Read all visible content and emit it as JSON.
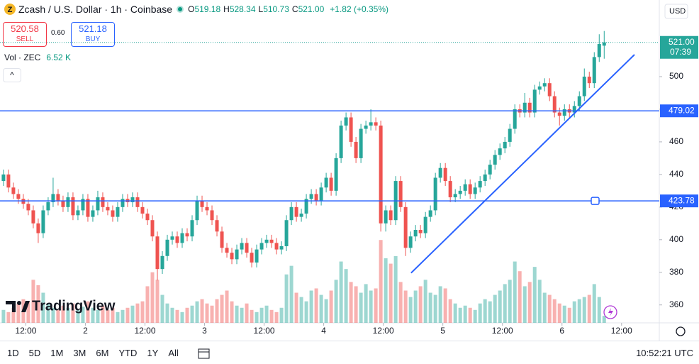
{
  "chart_data": {
    "type": "candlestick",
    "title": "Zcash / U.S. Dollar · 1h · Coinbase",
    "ohlc_header": [
      {
        "label": "O",
        "value": "519.18"
      },
      {
        "label": "H",
        "value": "528.34"
      },
      {
        "label": "L",
        "value": "510.73"
      },
      {
        "label": "C",
        "value": "521.00"
      }
    ],
    "change": "+1.82 (+0.35%)",
    "sell": {
      "price": "520.58",
      "label": "SELL"
    },
    "spread": "0.60",
    "buy": {
      "price": "521.18",
      "label": "BUY"
    },
    "volume_title": "Vol · ZEC",
    "volume_last": "6.52 K",
    "currency": "USD",
    "open": [
      436,
      440,
      432,
      428,
      425,
      422,
      418,
      410,
      404,
      418,
      423,
      428,
      424,
      420,
      426,
      415,
      418,
      425,
      414,
      418,
      426,
      420,
      418,
      414,
      420,
      425,
      423,
      426,
      420,
      416,
      412,
      402,
      382,
      390,
      400,
      402,
      398,
      404,
      402,
      412,
      424,
      420,
      418,
      412,
      405,
      395,
      392,
      388,
      394,
      398,
      392,
      386,
      394,
      398,
      400,
      398,
      394,
      396,
      412,
      420,
      414,
      416,
      425,
      428,
      424,
      432,
      438,
      430,
      450,
      470,
      475,
      460,
      450,
      468,
      470,
      472,
      470,
      410,
      418,
      412,
      436,
      420,
      395,
      402,
      406,
      404,
      414,
      418,
      438,
      444,
      436,
      426,
      428,
      430,
      434,
      428,
      432,
      436,
      440,
      446,
      452,
      456,
      460,
      468,
      480,
      478,
      484,
      478,
      492,
      494,
      496,
      488,
      478,
      476,
      480,
      478,
      482,
      488,
      500,
      496,
      512,
      519
    ],
    "high": [
      443,
      443,
      435,
      431,
      428,
      425,
      421,
      413,
      421,
      426,
      438,
      431,
      427,
      429,
      429,
      421,
      428,
      428,
      421,
      430,
      429,
      423,
      421,
      423,
      428,
      428,
      429,
      429,
      423,
      419,
      415,
      405,
      393,
      403,
      405,
      405,
      407,
      407,
      415,
      427,
      427,
      423,
      421,
      415,
      408,
      398,
      395,
      397,
      401,
      401,
      395,
      397,
      401,
      403,
      403,
      401,
      399,
      415,
      423,
      423,
      419,
      428,
      431,
      431,
      435,
      441,
      441,
      453,
      473,
      478,
      478,
      463,
      471,
      473,
      480,
      475,
      473,
      421,
      421,
      439,
      439,
      423,
      405,
      409,
      409,
      417,
      421,
      441,
      447,
      447,
      439,
      431,
      433,
      437,
      437,
      435,
      439,
      443,
      449,
      455,
      459,
      463,
      471,
      483,
      483,
      490,
      487,
      495,
      497,
      499,
      499,
      491,
      481,
      483,
      483,
      485,
      491,
      505,
      503,
      515,
      526,
      528
    ],
    "low": [
      433,
      429,
      425,
      422,
      419,
      415,
      407,
      398,
      401,
      415,
      420,
      421,
      417,
      417,
      412,
      412,
      415,
      411,
      411,
      415,
      417,
      415,
      411,
      411,
      417,
      420,
      420,
      417,
      413,
      409,
      399,
      375,
      379,
      387,
      397,
      395,
      395,
      399,
      399,
      409,
      417,
      415,
      409,
      402,
      392,
      389,
      385,
      385,
      391,
      389,
      383,
      383,
      391,
      395,
      395,
      391,
      391,
      393,
      409,
      411,
      411,
      413,
      422,
      421,
      421,
      429,
      427,
      427,
      447,
      467,
      457,
      447,
      447,
      465,
      467,
      467,
      405,
      405,
      409,
      409,
      417,
      390,
      392,
      399,
      401,
      401,
      411,
      415,
      435,
      433,
      423,
      423,
      425,
      427,
      425,
      425,
      429,
      433,
      437,
      443,
      449,
      453,
      457,
      465,
      475,
      475,
      475,
      475,
      489,
      491,
      485,
      475,
      470,
      473,
      475,
      475,
      479,
      485,
      493,
      493,
      509,
      511
    ],
    "close": [
      440,
      432,
      428,
      425,
      422,
      418,
      410,
      404,
      418,
      423,
      428,
      424,
      420,
      426,
      415,
      418,
      425,
      414,
      418,
      426,
      420,
      418,
      414,
      420,
      425,
      423,
      426,
      420,
      416,
      412,
      402,
      382,
      390,
      400,
      402,
      398,
      404,
      402,
      412,
      424,
      420,
      418,
      412,
      405,
      395,
      392,
      388,
      394,
      398,
      392,
      386,
      394,
      398,
      400,
      398,
      394,
      396,
      412,
      420,
      414,
      416,
      425,
      428,
      424,
      432,
      438,
      430,
      450,
      470,
      475,
      460,
      450,
      468,
      470,
      472,
      470,
      410,
      418,
      412,
      436,
      420,
      395,
      402,
      406,
      404,
      414,
      418,
      438,
      444,
      436,
      426,
      428,
      430,
      434,
      428,
      432,
      436,
      440,
      446,
      452,
      456,
      460,
      468,
      480,
      478,
      484,
      478,
      492,
      494,
      496,
      488,
      478,
      476,
      480,
      478,
      482,
      488,
      500,
      496,
      512,
      520,
      521
    ],
    "volume": [
      12,
      10,
      14,
      18,
      22,
      20,
      40,
      35,
      28,
      18,
      14,
      12,
      16,
      14,
      18,
      12,
      15,
      20,
      14,
      12,
      16,
      12,
      14,
      10,
      12,
      14,
      16,
      18,
      20,
      34,
      47,
      40,
      26,
      18,
      14,
      12,
      10,
      14,
      16,
      20,
      22,
      18,
      16,
      22,
      26,
      30,
      20,
      16,
      14,
      18,
      12,
      10,
      14,
      16,
      12,
      10,
      14,
      45,
      53,
      28,
      24,
      20,
      30,
      32,
      26,
      22,
      30,
      40,
      57,
      50,
      38,
      34,
      28,
      36,
      30,
      32,
      77,
      60,
      55,
      62,
      38,
      30,
      24,
      30,
      34,
      40,
      28,
      26,
      34,
      32,
      22,
      18,
      14,
      16,
      14,
      12,
      18,
      22,
      20,
      26,
      30,
      36,
      40,
      57,
      48,
      34,
      38,
      52,
      40,
      28,
      26,
      22,
      18,
      16,
      14,
      20,
      22,
      24,
      26,
      36,
      24,
      6.52
    ],
    "up_color": "#26a69a",
    "down_color": "#ef5350",
    "ylim": [
      349,
      547
    ],
    "yticks": [
      360,
      380,
      400,
      420,
      440,
      460,
      480,
      500
    ],
    "vlim": [
      0,
      300
    ],
    "xlim": [
      -0.7,
      132.1
    ],
    "xticks": [
      {
        "value": 4.5,
        "label": "12:00"
      },
      {
        "value": 16.5,
        "label": "2"
      },
      {
        "value": 28.5,
        "label": "12:00"
      },
      {
        "value": 40.5,
        "label": "3"
      },
      {
        "value": 52.5,
        "label": "12:00"
      },
      {
        "value": 64.5,
        "label": "4"
      },
      {
        "value": 76.5,
        "label": "12:00"
      },
      {
        "value": 88.5,
        "label": "5"
      },
      {
        "value": 100.5,
        "label": "12:00"
      },
      {
        "value": 112.5,
        "label": "6"
      },
      {
        "value": 124.5,
        "label": "12:00"
      }
    ],
    "price_lines": [
      479.02,
      423.78
    ],
    "line_color": "#2962ff",
    "last_price": {
      "value": 521,
      "label": "521.00",
      "countdown": "07:39"
    },
    "trend_line": {
      "x": [
        82.1,
        127.1
      ],
      "values": [
        379.6,
        513.5
      ]
    },
    "watermark": "TradingView",
    "timeframes": [
      "1D",
      "5D",
      "1M",
      "3M",
      "6M",
      "YTD",
      "1Y",
      "All"
    ],
    "clock": "10:52:21 UTC"
  }
}
